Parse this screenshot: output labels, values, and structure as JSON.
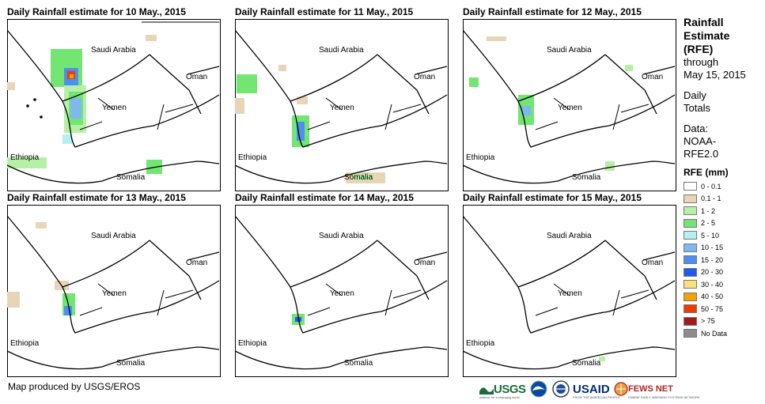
{
  "panels": [
    {
      "title": "Daily Rainfall estimate for 10 May., 2015"
    },
    {
      "title": "Daily Rainfall estimate for 11 May., 2015"
    },
    {
      "title": "Daily Rainfall estimate for 12 May., 2015"
    },
    {
      "title": "Daily Rainfall estimate for 13 May., 2015"
    },
    {
      "title": "Daily Rainfall estimate for 14 May., 2015"
    },
    {
      "title": "Daily Rainfall estimate for 15 May., 2015"
    }
  ],
  "map_labels": {
    "saudi": "Saudi Arabia",
    "oman": "Oman",
    "yemen": "Yemen",
    "ethiopia": "Ethiopia",
    "somalia": "Somalia"
  },
  "legend": {
    "title_lines": [
      "Rainfall",
      "Estimate",
      "(RFE)"
    ],
    "through": "through",
    "date": "May 15, 2015",
    "daily": "Daily",
    "totals": "Totals",
    "data_label": "Data:",
    "data_src1": "NOAA-",
    "data_src2": "RFE2.0",
    "rfe_header": "RFE (mm)",
    "items": [
      {
        "label": "0 - 0.1",
        "color": "#ffffff"
      },
      {
        "label": "0.1 - 1",
        "color": "#e8d5b7"
      },
      {
        "label": "1 - 2",
        "color": "#b6f0a6"
      },
      {
        "label": "2 - 5",
        "color": "#72e572"
      },
      {
        "label": "5 - 10",
        "color": "#b4f0f0"
      },
      {
        "label": "10 - 15",
        "color": "#7fb7ee"
      },
      {
        "label": "15 - 20",
        "color": "#4c8ff0"
      },
      {
        "label": "20 - 30",
        "color": "#1e5af0"
      },
      {
        "label": "30 - 40",
        "color": "#fce07a"
      },
      {
        "label": "40 - 50",
        "color": "#f5a200"
      },
      {
        "label": "50 - 75",
        "color": "#f03c00"
      },
      {
        "label": "> 75",
        "color": "#a01c1c"
      },
      {
        "label": "No Data",
        "color": "#8c8c8c"
      }
    ]
  },
  "credit": "Map produced by USGS/EROS",
  "logos": {
    "usgs": "USGS",
    "usgs_sub": "science for a changing world",
    "usaid": "USAID",
    "usaid_sub": "FROM THE AMERICAN PEOPLE",
    "fews": "FEWS NET",
    "fews_sub": "FAMINE EARLY WARNING SYSTEMS NETWORK"
  }
}
